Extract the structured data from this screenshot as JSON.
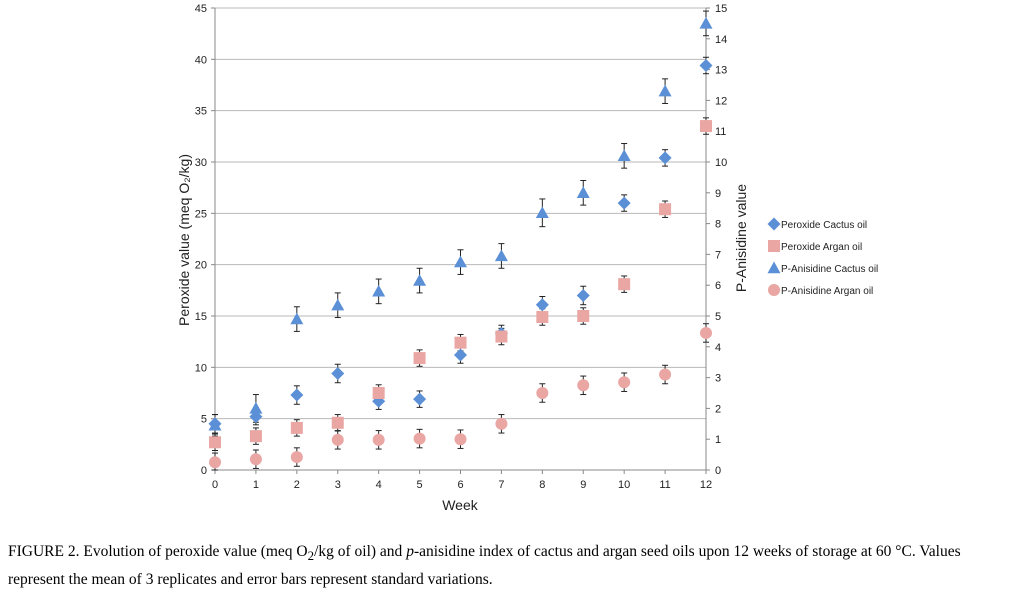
{
  "chart_data": {
    "type": "scatter",
    "xlabel": "Week",
    "ylabel_left": "Peroxide value (meq O₂/kg)",
    "ylabel_right": "P-Anisidine value",
    "xlim": [
      0,
      12
    ],
    "ylim_left": [
      0,
      45
    ],
    "ylim_right": [
      0,
      15
    ],
    "xticks": [
      0,
      1,
      2,
      3,
      4,
      5,
      6,
      7,
      8,
      9,
      10,
      11,
      12
    ],
    "yticks_left": [
      0,
      5,
      10,
      15,
      20,
      25,
      30,
      35,
      40,
      45
    ],
    "yticks_right": [
      0,
      1,
      2,
      3,
      4,
      5,
      6,
      7,
      8,
      9,
      10,
      11,
      12,
      13,
      14,
      15
    ],
    "grid": "horizontal",
    "legend_position": "right",
    "series": [
      {
        "name": "Peroxide Cactus oil",
        "axis": "left",
        "marker": "diamond",
        "color": "#5b8fd6",
        "x": [
          0,
          1,
          2,
          3,
          4,
          5,
          6,
          7,
          8,
          9,
          10,
          11,
          12
        ],
        "y": [
          4.5,
          5.2,
          7.3,
          9.4,
          6.7,
          6.9,
          11.2,
          13.3,
          16.1,
          17.0,
          26.0,
          30.4,
          39.4
        ],
        "err": [
          0.9,
          0.8,
          0.9,
          0.9,
          0.8,
          0.8,
          0.8,
          0.8,
          0.8,
          0.9,
          0.8,
          0.8,
          0.8
        ]
      },
      {
        "name": "Peroxide Argan oil",
        "axis": "left",
        "marker": "square",
        "color": "#e9a6a3",
        "x": [
          0,
          1,
          2,
          3,
          4,
          5,
          6,
          7,
          8,
          9,
          10,
          11,
          12
        ],
        "y": [
          2.7,
          3.3,
          4.1,
          4.6,
          7.5,
          10.9,
          12.4,
          13.0,
          14.9,
          15.0,
          18.1,
          25.4,
          33.5
        ],
        "err": [
          0.8,
          0.8,
          0.8,
          0.8,
          0.8,
          0.8,
          0.8,
          0.8,
          0.8,
          0.8,
          0.8,
          0.8,
          0.8
        ]
      },
      {
        "name": "P-Anisidine Cactus oil",
        "axis": "right",
        "marker": "triangle",
        "color": "#5b8fd6",
        "x": [
          0,
          1,
          2,
          3,
          4,
          5,
          6,
          7,
          8,
          9,
          10,
          11,
          12
        ],
        "y": [
          1.45,
          2.0,
          4.9,
          5.35,
          5.8,
          6.15,
          6.75,
          6.95,
          8.35,
          9.0,
          10.2,
          12.3,
          14.5
        ],
        "err": [
          0.35,
          0.45,
          0.4,
          0.4,
          0.4,
          0.4,
          0.4,
          0.4,
          0.45,
          0.4,
          0.4,
          0.4,
          0.4
        ]
      },
      {
        "name": "P-Anisidine Argan oil",
        "axis": "right",
        "marker": "circle",
        "color": "#e9a6a3",
        "x": [
          0,
          1,
          2,
          3,
          4,
          5,
          6,
          7,
          8,
          9,
          10,
          11,
          12
        ],
        "y": [
          0.25,
          0.35,
          0.42,
          0.98,
          0.98,
          1.02,
          1.0,
          1.5,
          2.5,
          2.75,
          2.85,
          3.1,
          4.45
        ],
        "err": [
          0.3,
          0.3,
          0.3,
          0.3,
          0.3,
          0.3,
          0.3,
          0.3,
          0.3,
          0.3,
          0.3,
          0.3,
          0.3
        ]
      }
    ]
  },
  "caption": {
    "part1": "FIGURE 2. Evolution of peroxide value (meq O",
    "sub": "2",
    "part2": "/kg of oil) and ",
    "italic": "p",
    "part3": "-anisidine index of cactus and argan seed oils upon 12 weeks of storage at 60 °C. Values represent the mean of 3 replicates and error bars represent standard variations."
  }
}
